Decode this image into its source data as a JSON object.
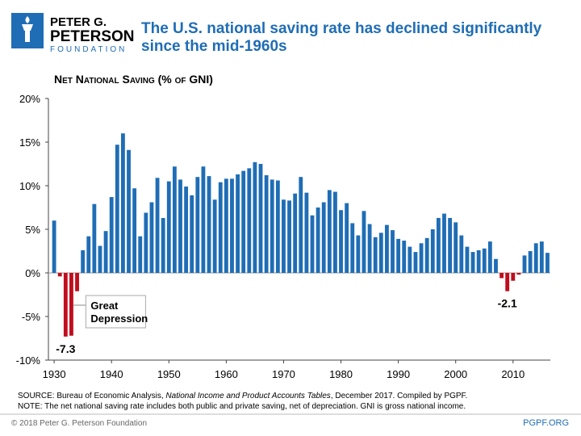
{
  "logo": [
    "PETER G.",
    "PETERSON",
    "FOUNDATION"
  ],
  "chart_data": {
    "type": "bar",
    "title": [
      "The U.S. national saving rate has declined significantly",
      "since the mid-1960s"
    ],
    "subtitle": "Net National Saving (% of GNI)",
    "x": [
      1930,
      1931,
      1932,
      1933,
      1934,
      1935,
      1936,
      1937,
      1938,
      1939,
      1940,
      1941,
      1942,
      1943,
      1944,
      1945,
      1946,
      1947,
      1948,
      1949,
      1950,
      1951,
      1952,
      1953,
      1954,
      1955,
      1956,
      1957,
      1958,
      1959,
      1960,
      1961,
      1962,
      1963,
      1964,
      1965,
      1966,
      1967,
      1968,
      1969,
      1970,
      1971,
      1972,
      1973,
      1974,
      1975,
      1976,
      1977,
      1978,
      1979,
      1980,
      1981,
      1982,
      1983,
      1984,
      1985,
      1986,
      1987,
      1988,
      1989,
      1990,
      1991,
      1992,
      1993,
      1994,
      1995,
      1996,
      1997,
      1998,
      1999,
      2000,
      2001,
      2002,
      2003,
      2004,
      2005,
      2006,
      2007,
      2008,
      2009,
      2010,
      2011,
      2012,
      2013,
      2014,
      2015,
      2016
    ],
    "values": [
      6.0,
      -0.4,
      -7.3,
      -7.2,
      -2.1,
      2.6,
      4.2,
      7.9,
      3.1,
      4.8,
      8.7,
      14.7,
      16.0,
      14.1,
      9.7,
      4.2,
      6.9,
      8.1,
      10.9,
      6.3,
      10.5,
      12.2,
      10.7,
      9.9,
      8.9,
      11.0,
      12.2,
      11.1,
      8.4,
      10.4,
      10.8,
      10.8,
      11.3,
      11.7,
      12.0,
      12.7,
      12.5,
      11.2,
      10.7,
      10.6,
      8.4,
      8.3,
      9.1,
      11.0,
      9.2,
      6.6,
      7.5,
      8.1,
      9.5,
      9.3,
      7.2,
      8.0,
      5.7,
      4.3,
      7.1,
      5.6,
      4.1,
      4.6,
      5.5,
      4.9,
      3.9,
      3.7,
      3.0,
      2.4,
      3.4,
      4.0,
      5.0,
      6.3,
      6.8,
      6.3,
      5.8,
      4.3,
      3.0,
      2.4,
      2.6,
      2.8,
      3.6,
      1.6,
      -0.6,
      -2.1,
      -0.9,
      -0.2,
      2.0,
      2.5,
      3.4,
      3.6,
      2.3
    ],
    "color": "#1f6db5",
    "negative_color": "#c00d1e",
    "value_labels_at": [
      1932,
      2009
    ],
    "annotations": [
      {
        "text": [
          "Great",
          "Depression"
        ],
        "x": 1933
      }
    ],
    "xlim": [
      1929,
      2016.5
    ],
    "xticks": [
      1930,
      1940,
      1950,
      1960,
      1970,
      1980,
      1990,
      2000,
      2010
    ],
    "ylim": [
      -10,
      20
    ],
    "yticks": [
      {
        "value": -10,
        "label": "-10%"
      },
      {
        "value": -5,
        "label": "-5%"
      },
      {
        "value": 0,
        "label": "0%"
      },
      {
        "value": 5,
        "label": "5%"
      },
      {
        "value": 10,
        "label": "10%"
      },
      {
        "value": 15,
        "label": "15%"
      },
      {
        "value": 20,
        "label": "20%"
      }
    ],
    "source": [
      "SOURCE: Bureau of Economic Analysis, ",
      "National Income and Product Accounts Tables",
      ", December 2017. Compiled by PGPF."
    ],
    "note": "NOTE: The net national saving rate includes both public and private saving, net of depreciation. GNI is gross national income."
  },
  "footer": {
    "copyright": "© 2018 Peter G. Peterson Foundation",
    "site": "PGPF.ORG"
  }
}
